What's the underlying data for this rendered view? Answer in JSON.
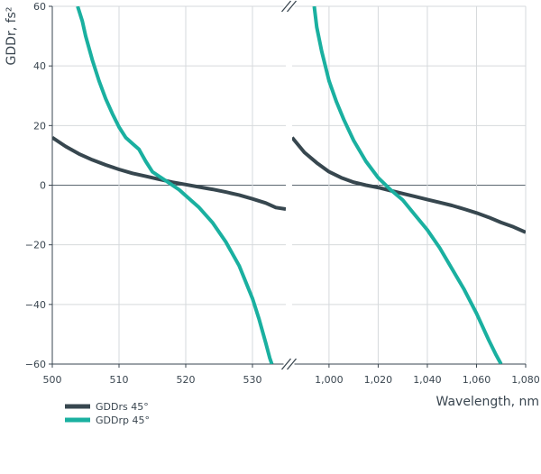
{
  "chart_data": [
    {
      "type": "line",
      "xlabel": "",
      "ylabel": "GDDr, fs²",
      "xlim": [
        500,
        535
      ],
      "ylim": [
        -60,
        60
      ],
      "x_ticks": [
        500,
        510,
        520,
        530
      ],
      "x_tick_labels": [
        "500",
        "510",
        "520",
        "530"
      ],
      "y_ticks": [
        -60,
        -40,
        -20,
        0,
        20,
        40,
        60
      ],
      "y_tick_labels": [
        "−60",
        "−40",
        "−20",
        "0",
        "20",
        "40",
        "60"
      ],
      "grid": true,
      "series": [
        {
          "name": "GDDrs 45°",
          "color": "#37474f",
          "points": [
            [
              500,
              16
            ],
            [
              502,
              13
            ],
            [
              504,
              10.5
            ],
            [
              506,
              8.5
            ],
            [
              508,
              6.8
            ],
            [
              510,
              5.3
            ],
            [
              512,
              4
            ],
            [
              514,
              3
            ],
            [
              516,
              2
            ],
            [
              518,
              1
            ],
            [
              520,
              0.2
            ],
            [
              522,
              -0.6
            ],
            [
              524,
              -1.4
            ],
            [
              526,
              -2.3
            ],
            [
              528,
              -3.3
            ],
            [
              530,
              -4.6
            ],
            [
              532,
              -6
            ],
            [
              533.5,
              -7.5
            ],
            [
              535,
              -8
            ]
          ]
        },
        {
          "name": "GDDrp 45°",
          "color": "#1ab0a0",
          "points": [
            [
              503.8,
              60
            ],
            [
              504.5,
              55
            ],
            [
              505,
              50
            ],
            [
              506,
              42
            ],
            [
              507,
              35
            ],
            [
              508,
              29
            ],
            [
              509,
              24
            ],
            [
              510,
              19.5
            ],
            [
              511,
              16
            ],
            [
              512,
              14
            ],
            [
              513,
              12
            ],
            [
              514,
              8
            ],
            [
              515,
              4.5
            ],
            [
              516,
              3
            ],
            [
              517,
              1.5
            ],
            [
              518,
              0
            ],
            [
              519,
              -1.5
            ],
            [
              520,
              -3.5
            ],
            [
              522,
              -7.5
            ],
            [
              524,
              -12.5
            ],
            [
              526,
              -19
            ],
            [
              528,
              -27
            ],
            [
              530,
              -38
            ],
            [
              531,
              -45
            ],
            [
              532,
              -53
            ],
            [
              532.6,
              -58
            ],
            [
              532.9,
              -60
            ]
          ]
        }
      ]
    },
    {
      "type": "line",
      "xlabel": "Wavelength, nm",
      "ylabel": "",
      "xlim": [
        985,
        1080
      ],
      "ylim": [
        -60,
        60
      ],
      "x_ticks": [
        1000,
        1020,
        1040,
        1060,
        1080
      ],
      "x_tick_labels": [
        "1,000",
        "1,020",
        "1,040",
        "1,060",
        "1,080"
      ],
      "y_ticks": [
        -60,
        -40,
        -20,
        0,
        20,
        40,
        60
      ],
      "grid": true,
      "series": [
        {
          "name": "GDDrs 45°",
          "color": "#37474f",
          "points": [
            [
              985,
              16
            ],
            [
              990,
              11
            ],
            [
              995,
              7.5
            ],
            [
              1000,
              4.5
            ],
            [
              1005,
              2.5
            ],
            [
              1010,
              1
            ],
            [
              1015,
              0
            ],
            [
              1020,
              -0.8
            ],
            [
              1025,
              -1.8
            ],
            [
              1030,
              -2.8
            ],
            [
              1035,
              -3.8
            ],
            [
              1040,
              -4.8
            ],
            [
              1045,
              -5.8
            ],
            [
              1050,
              -6.8
            ],
            [
              1055,
              -8
            ],
            [
              1060,
              -9.3
            ],
            [
              1065,
              -10.8
            ],
            [
              1070,
              -12.5
            ],
            [
              1075,
              -14
            ],
            [
              1080,
              -15.8
            ]
          ]
        },
        {
          "name": "GDDrp 45°",
          "color": "#1ab0a0",
          "points": [
            [
              994,
              60
            ],
            [
              995,
              53
            ],
            [
              997,
              45
            ],
            [
              1000,
              35
            ],
            [
              1003,
              28
            ],
            [
              1006,
              22
            ],
            [
              1010,
              15
            ],
            [
              1015,
              8
            ],
            [
              1020,
              2.5
            ],
            [
              1025,
              -1.5
            ],
            [
              1030,
              -5
            ],
            [
              1035,
              -10
            ],
            [
              1040,
              -15
            ],
            [
              1045,
              -21
            ],
            [
              1050,
              -28
            ],
            [
              1055,
              -35
            ],
            [
              1060,
              -43
            ],
            [
              1065,
              -52
            ],
            [
              1068,
              -57
            ],
            [
              1070,
              -60
            ]
          ]
        }
      ]
    }
  ],
  "legend": [
    {
      "label": "GDDrs 45°",
      "color": "#37474f"
    },
    {
      "label": "GDDrp 45°",
      "color": "#1ab0a0"
    }
  ]
}
